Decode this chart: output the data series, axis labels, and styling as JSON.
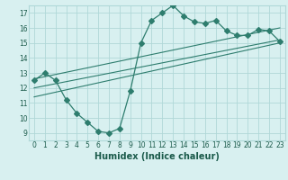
{
  "xlabel": "Humidex (Indice chaleur)",
  "bg_color": "#d8f0f0",
  "line_color": "#2e7d6e",
  "grid_color": "#b0d8d8",
  "x_ticks": [
    0,
    1,
    2,
    3,
    4,
    5,
    6,
    7,
    8,
    9,
    10,
    11,
    12,
    13,
    14,
    15,
    16,
    17,
    18,
    19,
    20,
    21,
    22,
    23
  ],
  "y_ticks": [
    9,
    10,
    11,
    12,
    13,
    14,
    15,
    16,
    17
  ],
  "xlim": [
    -0.5,
    23.5
  ],
  "ylim": [
    8.5,
    17.5
  ],
  "main_curve_x": [
    0,
    1,
    2,
    3,
    4,
    5,
    6,
    7,
    8,
    9,
    10,
    11,
    12,
    13,
    14,
    15,
    16,
    17,
    18,
    19,
    20,
    21,
    22,
    23
  ],
  "main_curve_y": [
    12.5,
    13.0,
    12.5,
    11.2,
    10.3,
    9.7,
    9.1,
    9.0,
    9.3,
    11.8,
    15.0,
    16.5,
    17.0,
    17.5,
    16.8,
    16.4,
    16.3,
    16.5,
    15.8,
    15.5,
    15.5,
    15.9,
    15.8,
    15.1
  ],
  "line1_x": [
    0,
    23
  ],
  "line1_y": [
    12.6,
    16.0
  ],
  "line2_x": [
    0,
    23
  ],
  "line2_y": [
    12.0,
    15.2
  ],
  "line3_x": [
    0,
    23
  ],
  "line3_y": [
    11.4,
    15.0
  ],
  "marker_size": 3.0,
  "tick_fontsize": 5.5,
  "xlabel_fontsize": 7
}
